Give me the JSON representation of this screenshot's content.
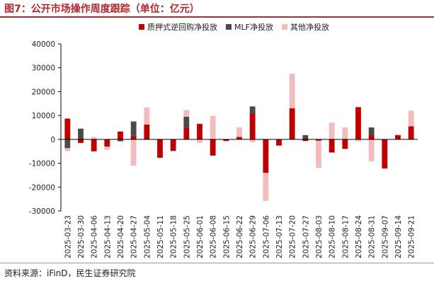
{
  "title": "图7：公开市场操作周度跟踪（单位：亿元）",
  "source": "资料来源：iFinD，民生证券研究院",
  "chart_data": {
    "type": "bar",
    "stacked": true,
    "title": "图7：公开市场操作周度跟踪（单位：亿元）",
    "ylim": [
      -30000,
      40000
    ],
    "yticks": [
      -30000,
      -20000,
      -10000,
      0,
      10000,
      20000,
      30000,
      40000
    ],
    "legend_position": "top-center",
    "grid": false,
    "categories": [
      "2025-03-23",
      "2025-03-30",
      "2025-04-06",
      "2025-04-13",
      "2025-04-20",
      "2025-04-27",
      "2025-05-04",
      "2025-05-11",
      "2025-05-18",
      "2025-05-25",
      "2025-06-01",
      "2025-06-08",
      "2025-06-15",
      "2025-06-22",
      "2025-06-29",
      "2025-07-06",
      "2025-07-13",
      "2025-07-20",
      "2025-07-27",
      "2025-08-03",
      "2025-08-10",
      "2025-08-17",
      "2025-08-24",
      "2025-08-31",
      "2025-09-07",
      "2025-09-14",
      "2025-09-21"
    ],
    "series": [
      {
        "name": "质押式逆回购净投放",
        "color": "#c00000",
        "values": [
          8700,
          -1500,
          -5000,
          -3000,
          3300,
          1500,
          6200,
          -7700,
          -4500,
          4900,
          6500,
          -6800,
          -700,
          1000,
          10800,
          -14000,
          -2600,
          13000,
          -700,
          -600,
          -5500,
          -4000,
          13500,
          2000,
          -12200,
          1800,
          5500
        ]
      },
      {
        "name": "MLF净投放",
        "color": "#4a4a4a",
        "values": [
          -3700,
          4500,
          0,
          0,
          -800,
          6000,
          0,
          0,
          -400,
          4600,
          0,
          0,
          0,
          0,
          3000,
          0,
          0,
          0,
          1800,
          0,
          0,
          0,
          0,
          3000,
          0,
          0,
          0
        ]
      },
      {
        "name": "其他净投放",
        "color": "#f2bcbc",
        "values": [
          -1200,
          0,
          1000,
          -1300,
          0,
          -11000,
          7200,
          0,
          0,
          2800,
          -1500,
          9900,
          0,
          4000,
          -1200,
          -11800,
          0,
          14500,
          0,
          -11300,
          7000,
          5000,
          -800,
          -9200,
          0,
          0,
          6500
        ]
      }
    ]
  }
}
